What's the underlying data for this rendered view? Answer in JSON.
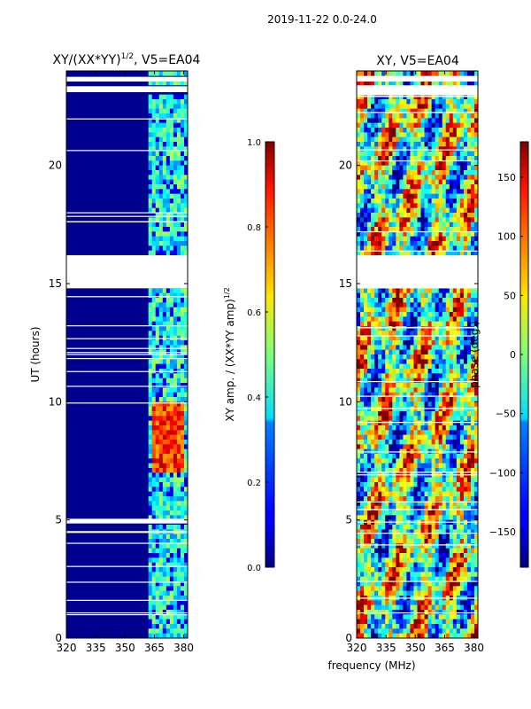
{
  "figure": {
    "suptitle": "2019-11-22 0.0-24.0",
    "xlabel": "frequency (MHz)",
    "colors": {
      "panel_bg": "#00008f",
      "empty": "#ffffff",
      "frame": "#000000"
    }
  },
  "chart_data": [
    {
      "type": "heatmap",
      "title": "XY/(XX*YY)",
      "title_superscript": "1/2",
      "title_suffix": ", V5=EA04",
      "xlabel": "",
      "ylabel": "UT (hours)",
      "xlim": [
        320,
        382
      ],
      "ylim": [
        0,
        24
      ],
      "xticks": [
        320,
        335,
        350,
        365,
        380
      ],
      "xtick_labels": [
        "320",
        "335",
        "350",
        "365",
        "380"
      ],
      "yticks": [
        0,
        5,
        10,
        15,
        20
      ],
      "ytick_labels": [
        "0",
        "5",
        "10",
        "15",
        "20"
      ],
      "colorbar": {
        "label": "XY amp. / (XX*YY amp)",
        "label_superscript": "1/2",
        "range": [
          0.0,
          1.0
        ],
        "ticks": [
          0.0,
          0.2,
          0.4,
          0.6,
          0.8,
          1.0
        ],
        "tick_labels": [
          "0.0",
          "0.2",
          "0.4",
          "0.6",
          "0.8",
          "1.0"
        ],
        "colormap": "jet"
      },
      "gaps_hours": [
        [
          16.2,
          14.8
        ],
        [
          4.85,
          5.05
        ],
        [
          23.1,
          23.35
        ],
        [
          23.55,
          23.75
        ]
      ],
      "band_mhz": [
        362,
        382
      ],
      "high_block": {
        "hours": [
          7.0,
          10.0
        ],
        "mhz": [
          363,
          381
        ]
      }
    },
    {
      "type": "heatmap",
      "title": "XY, V5=EA04",
      "xlabel": "",
      "ylabel": "",
      "xlim": [
        320,
        382
      ],
      "ylim": [
        0,
        24
      ],
      "xticks": [
        320,
        335,
        350,
        365,
        380
      ],
      "xtick_labels": [
        "320",
        "335",
        "350",
        "365",
        "380"
      ],
      "yticks": [
        0,
        5,
        10,
        15,
        20
      ],
      "ytick_labels": [
        "0",
        "5",
        "10",
        "15",
        "20"
      ],
      "colorbar": {
        "label": "phase (deg.)",
        "range": [
          -180,
          180
        ],
        "ticks": [
          -150,
          -100,
          -50,
          0,
          50,
          100,
          150
        ],
        "tick_labels": [
          "−150",
          "−100",
          "−50",
          "0",
          "50",
          "100",
          "150"
        ],
        "colormap": "jet"
      },
      "gaps_hours": [
        [
          16.2,
          14.8
        ],
        [
          23.1,
          23.35
        ],
        [
          23.55,
          23.75
        ]
      ]
    }
  ]
}
